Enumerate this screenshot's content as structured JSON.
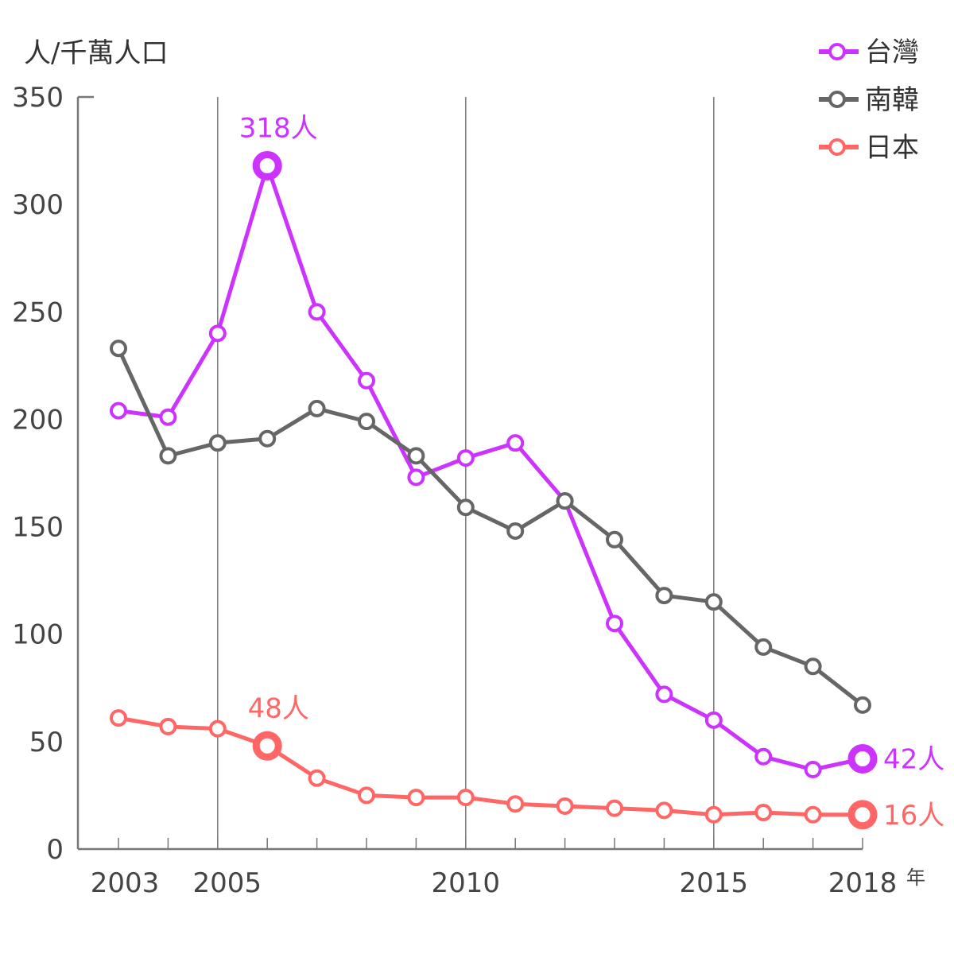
{
  "chart_data": {
    "type": "line",
    "ylabel": "人/千萬人口",
    "xunit": "年",
    "ylim": [
      0,
      350
    ],
    "yticks": [
      0,
      50,
      100,
      150,
      200,
      250,
      300,
      350
    ],
    "xlim": [
      2003,
      2018
    ],
    "xticks": [
      2003,
      2005,
      2010,
      2015,
      2018
    ],
    "gridlines_x": [
      2005,
      2010,
      2015
    ],
    "legend_position": "top-right",
    "x": [
      2003,
      2004,
      2005,
      2006,
      2007,
      2008,
      2009,
      2010,
      2011,
      2012,
      2013,
      2014,
      2015,
      2016,
      2017,
      2018
    ],
    "series": [
      {
        "name": "台灣",
        "color": "#cc33ff",
        "values": [
          204,
          201,
          240,
          318,
          250,
          218,
          173,
          182,
          189,
          162,
          105,
          72,
          60,
          43,
          37,
          42
        ],
        "annotations": [
          {
            "x": 2006,
            "label": "318人",
            "pos": "above"
          },
          {
            "x": 2018,
            "label": "42人",
            "pos": "right"
          }
        ]
      },
      {
        "name": "南韓",
        "color": "#666666",
        "values": [
          233,
          183,
          189,
          191,
          205,
          199,
          183,
          159,
          148,
          162,
          144,
          118,
          115,
          94,
          85,
          67
        ],
        "annotations": []
      },
      {
        "name": "日本",
        "color": "#ff6666",
        "values": [
          61,
          57,
          56,
          48,
          33,
          25,
          24,
          24,
          21,
          20,
          19,
          18,
          16,
          17,
          16,
          16
        ],
        "annotations": [
          {
            "x": 2006,
            "label": "48人",
            "pos": "above"
          },
          {
            "x": 2018,
            "label": "16人",
            "pos": "right"
          }
        ]
      }
    ]
  }
}
